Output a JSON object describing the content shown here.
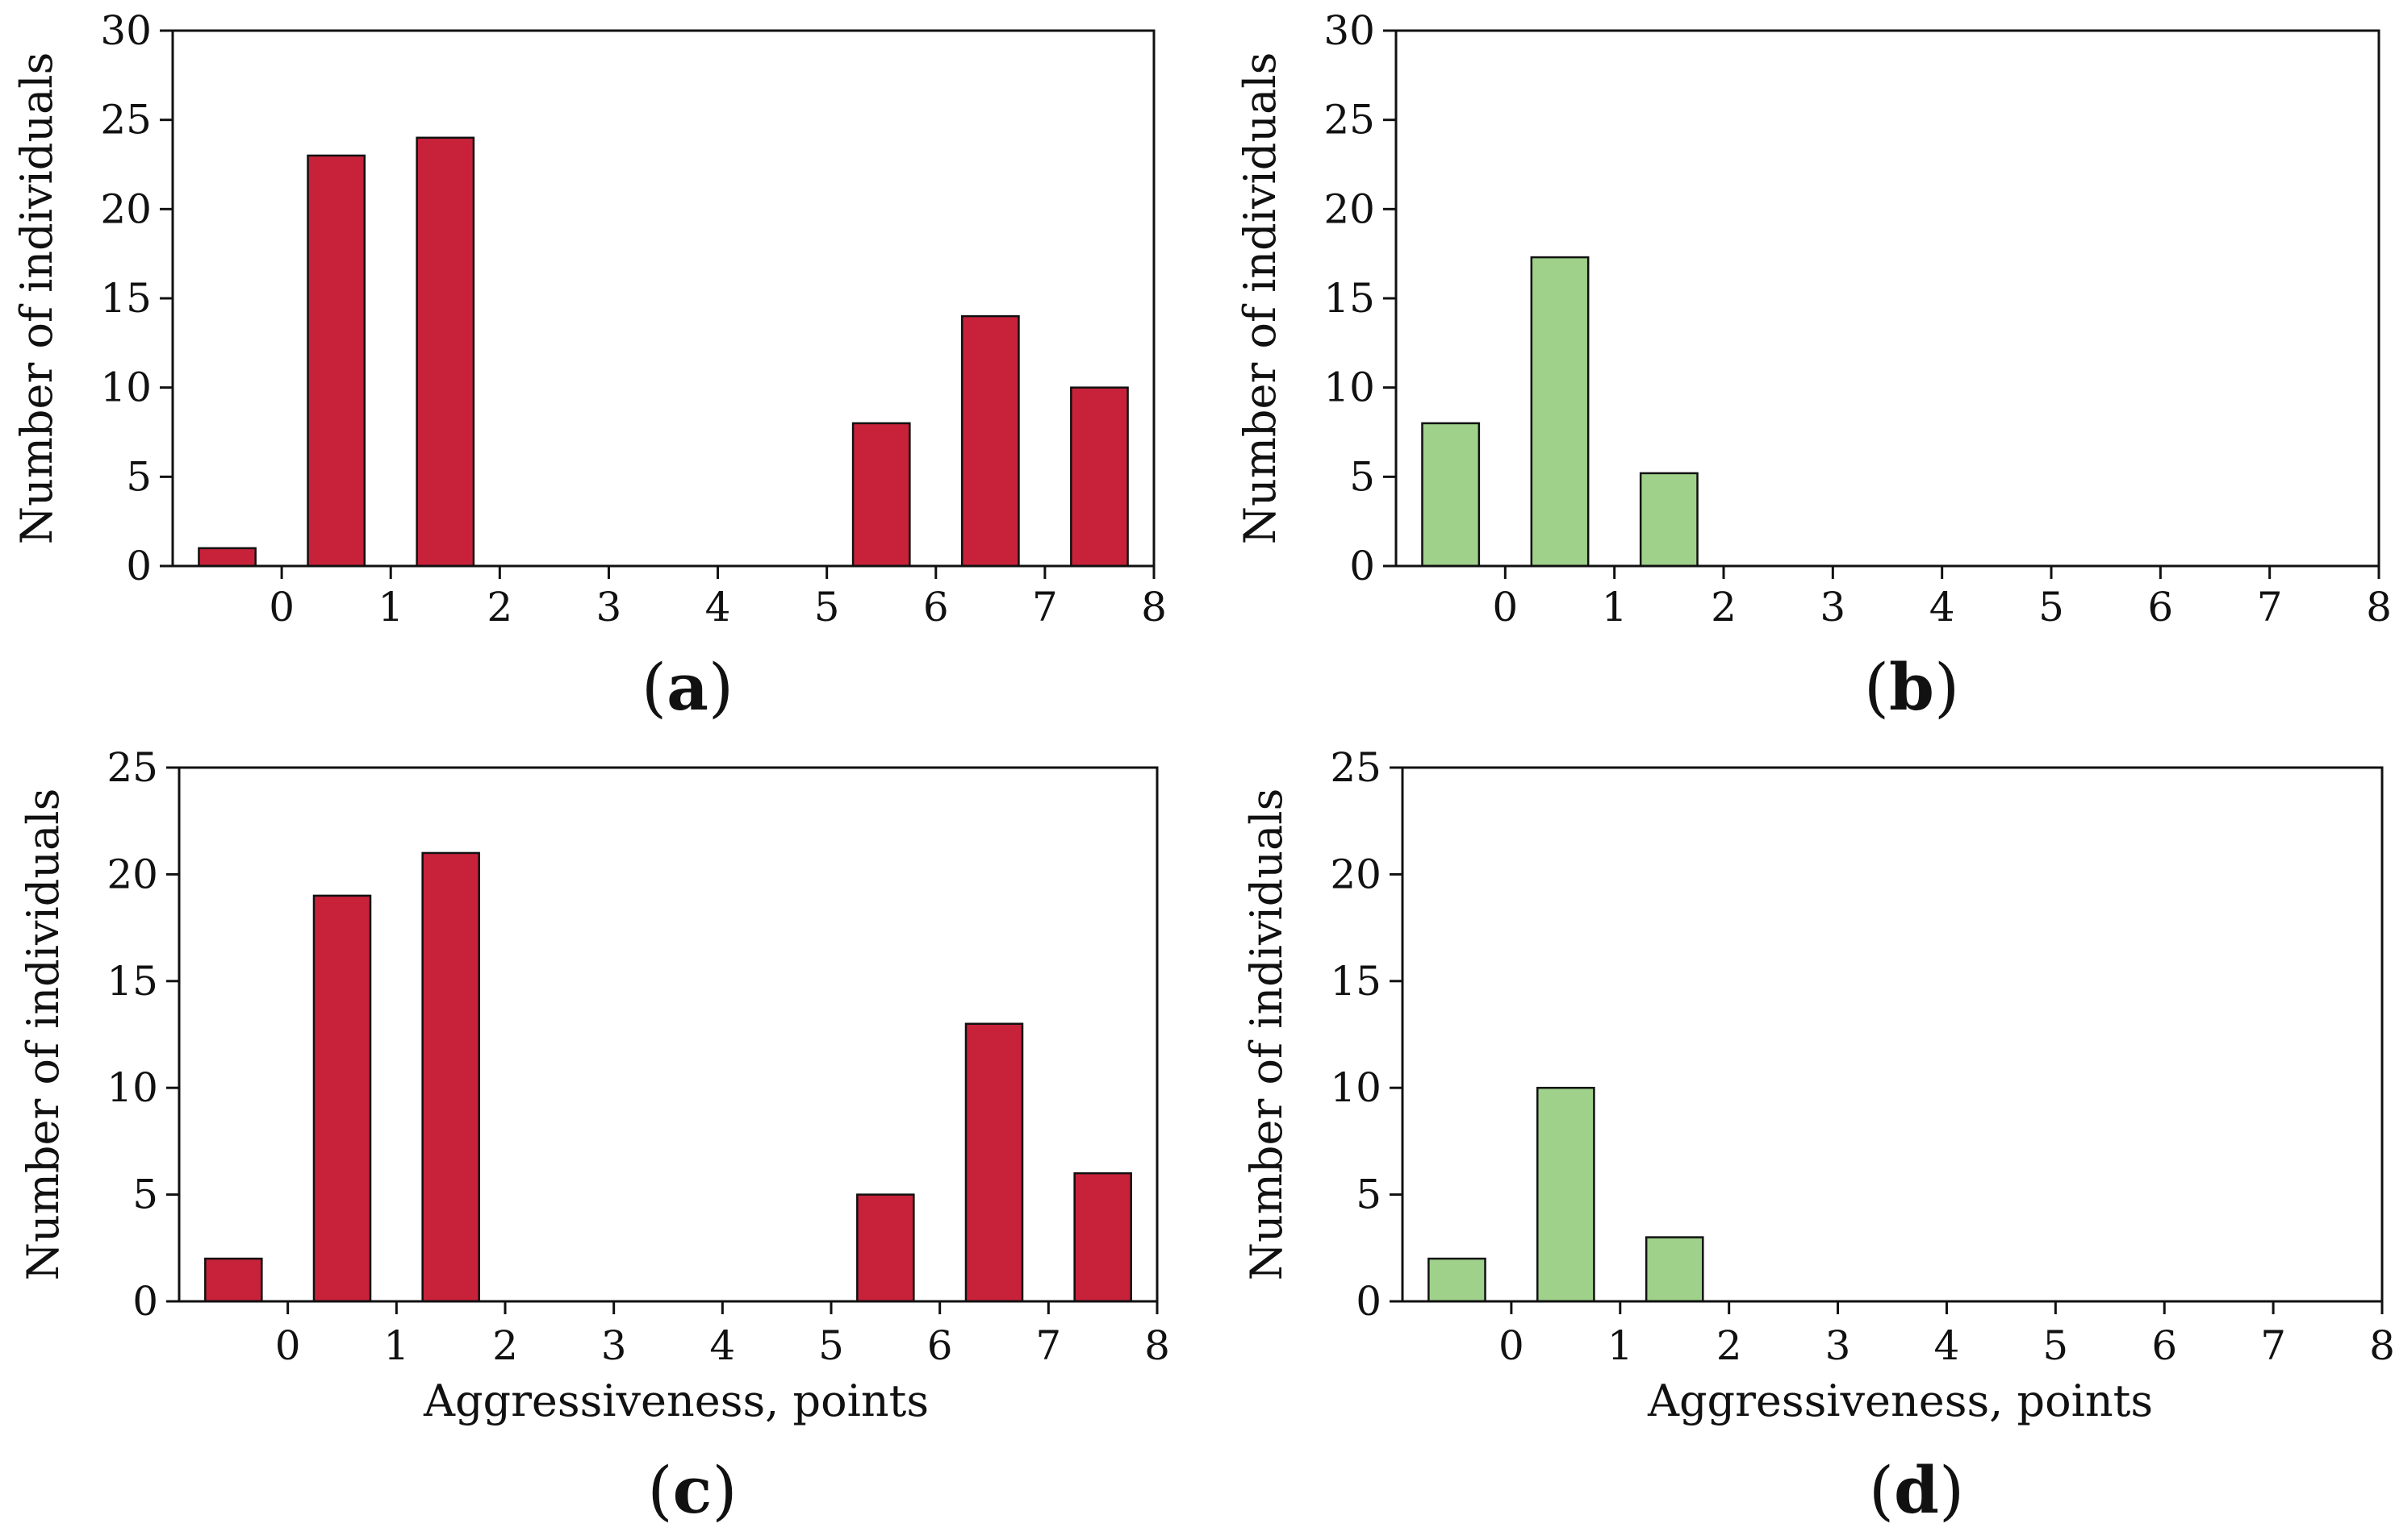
{
  "chart_data": [
    {
      "id": "a",
      "type": "bar",
      "panel_label": "a",
      "categories": [
        "-0.5",
        "0.5",
        "1.5",
        "2.5",
        "3.5",
        "4.5",
        "5.5",
        "6.5",
        "7.5"
      ],
      "values": [
        1,
        23,
        24,
        0,
        0,
        0,
        8,
        14,
        10
      ],
      "xticks": [
        "0",
        "1",
        "2",
        "3",
        "4",
        "5",
        "6",
        "7",
        "8"
      ],
      "yticks": [
        "0",
        "5",
        "10",
        "15",
        "20",
        "25",
        "30"
      ],
      "ylim": [
        0,
        30
      ],
      "xlim": [
        -1.0,
        8.0
      ],
      "xlabel": "",
      "ylabel": "Number of individuals",
      "bar_color": "#c8223a"
    },
    {
      "id": "b",
      "type": "bar",
      "panel_label": "b",
      "categories": [
        "-0.5",
        "0.5",
        "1.5",
        "2.5",
        "3.5",
        "4.5",
        "5.5",
        "6.5",
        "7.5"
      ],
      "values": [
        8,
        17.3,
        5.2,
        0,
        0,
        0,
        0,
        0,
        0
      ],
      "xticks": [
        "0",
        "1",
        "2",
        "3",
        "4",
        "5",
        "6",
        "7",
        "8"
      ],
      "yticks": [
        "0",
        "5",
        "10",
        "15",
        "20",
        "25",
        "30"
      ],
      "ylim": [
        0,
        30
      ],
      "xlim": [
        -1.0,
        8.0
      ],
      "xlabel": "",
      "ylabel": "Number of individuals",
      "bar_color": "#9fd18a"
    },
    {
      "id": "c",
      "type": "bar",
      "panel_label": "c",
      "categories": [
        "-0.5",
        "0.5",
        "1.5",
        "2.5",
        "3.5",
        "4.5",
        "5.5",
        "6.5",
        "7.5"
      ],
      "values": [
        2,
        19,
        21,
        0,
        0,
        0,
        5,
        13,
        6
      ],
      "xticks": [
        "0",
        "1",
        "2",
        "3",
        "4",
        "5",
        "6",
        "7",
        "8"
      ],
      "yticks": [
        "0",
        "5",
        "10",
        "15",
        "20",
        "25"
      ],
      "ylim": [
        0,
        25
      ],
      "xlim": [
        -1.0,
        8.0
      ],
      "xlabel": "Aggressiveness, points",
      "ylabel": "Number of individuals",
      "bar_color": "#c8223a"
    },
    {
      "id": "d",
      "type": "bar",
      "panel_label": "d",
      "categories": [
        "-0.5",
        "0.5",
        "1.5",
        "2.5",
        "3.5",
        "4.5",
        "5.5",
        "6.5",
        "7.5"
      ],
      "values": [
        2,
        10,
        3,
        0,
        0,
        0,
        0,
        0,
        0
      ],
      "xticks": [
        "0",
        "1",
        "2",
        "3",
        "4",
        "5",
        "6",
        "7",
        "8"
      ],
      "yticks": [
        "0",
        "5",
        "10",
        "15",
        "20",
        "25"
      ],
      "ylim": [
        0,
        25
      ],
      "xlim": [
        -1.0,
        8.0
      ],
      "xlabel": "Aggressiveness, points",
      "ylabel": "Number of individuals",
      "bar_color": "#9fd18a"
    }
  ]
}
